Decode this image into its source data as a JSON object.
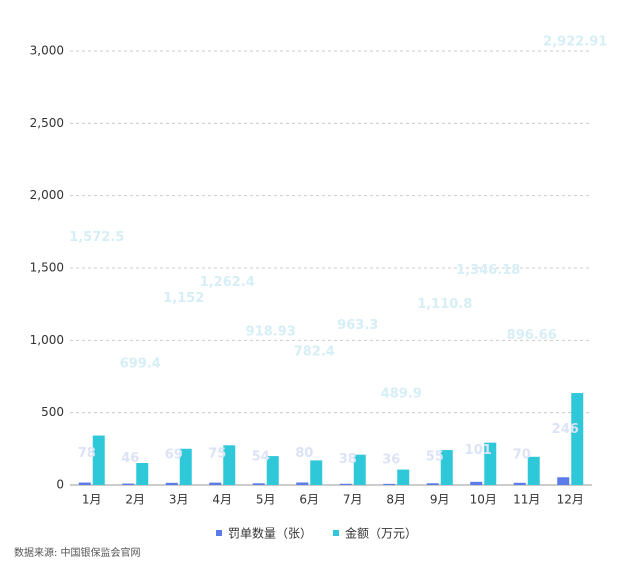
{
  "chart_data": {
    "type": "bar",
    "source": "数据来源: 中国银保监会官网",
    "categories": [
      "1月",
      "2月",
      "3月",
      "4月",
      "5月",
      "6月",
      "7月",
      "8月",
      "9月",
      "10月",
      "11月",
      "12月"
    ],
    "series": [
      {
        "name": "罚单数量（张）",
        "color": "#5b7be8",
        "axis": "y2",
        "values": [
          78,
          46,
          69,
          75,
          54,
          80,
          38,
          36,
          55,
          101,
          70,
          246
        ]
      },
      {
        "name": "金额（万元）",
        "color": "#2ec8d8",
        "axis": "y2",
        "values": [
          1572.5,
          699.4,
          1152,
          1262.4,
          918.93,
          782.4,
          963.3,
          489.9,
          1110.8,
          1346.18,
          896.66,
          2922.91
        ],
        "value_labels": [
          "1,572.5",
          "699.4",
          "1,152",
          "1,262.4",
          "918.93",
          "782.4",
          "963.3",
          "489.9",
          "1,110.8",
          "1,346.18",
          "896.66",
          "2,922.91"
        ]
      }
    ],
    "ylim": [
      0,
      3000
    ],
    "yticks": [
      0,
      500,
      {
        "value": 1000,
        "label": "1,000"
      },
      {
        "value": 1500,
        "label": "1,500"
      },
      {
        "value": 2000,
        "label": "2,000"
      },
      {
        "value": 2500,
        "label": "2,500"
      },
      {
        "value": 3000,
        "label": "3,000"
      }
    ],
    "y2lim": [
      0,
      13800
    ],
    "grid": true,
    "legend": "bottom"
  }
}
